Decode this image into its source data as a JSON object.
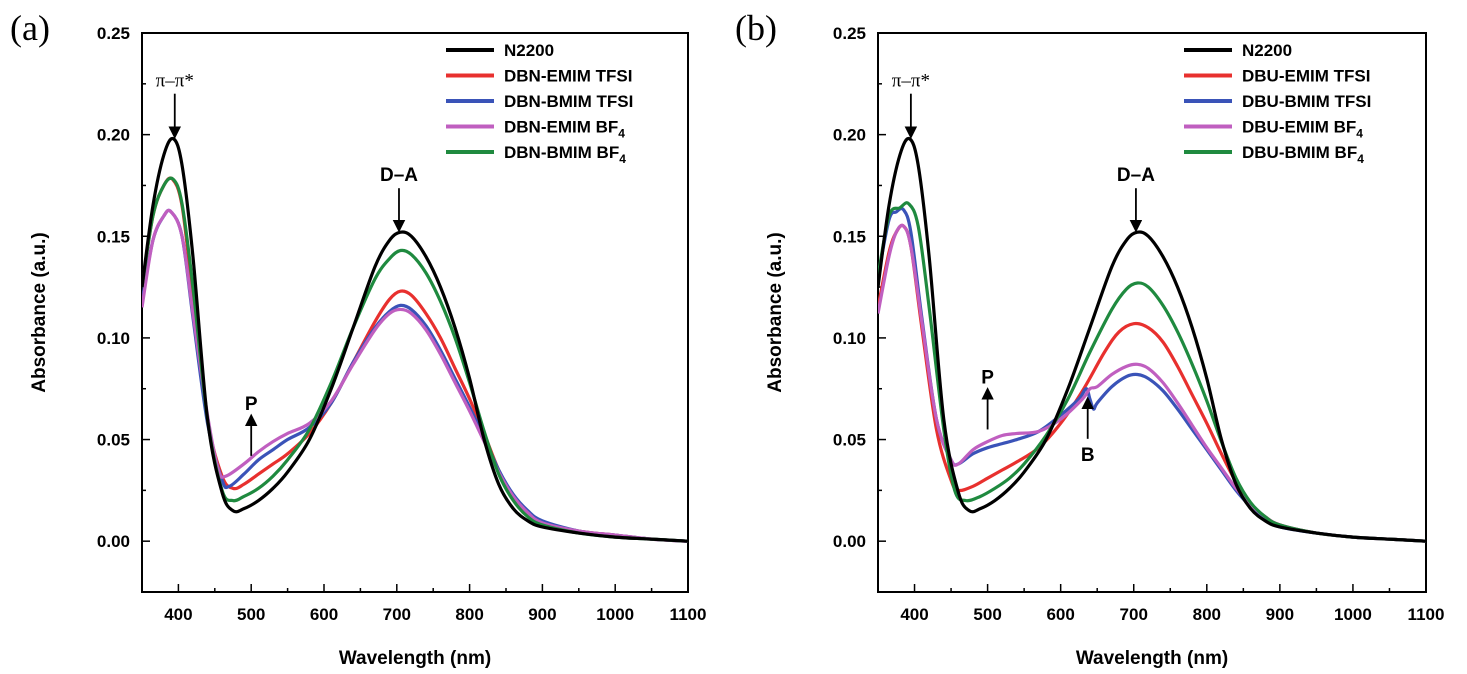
{
  "figure": {
    "panels": [
      "(a)",
      "(b)"
    ]
  },
  "chart_data": [
    {
      "type": "line",
      "panel_label": "(a)",
      "xlabel": "Wavelength (nm)",
      "ylabel": "Absorbance (a.u.)",
      "xlim": [
        350,
        1100
      ],
      "ylim": [
        -0.025,
        0.25
      ],
      "xticks": [
        400,
        500,
        600,
        700,
        800,
        900,
        1000,
        1100
      ],
      "yticks": [
        0.0,
        0.05,
        0.1,
        0.15,
        0.2,
        0.25
      ],
      "ytick_labels": [
        "0.00",
        "0.05",
        "0.10",
        "0.15",
        "0.20",
        "0.25"
      ],
      "grid": false,
      "legend_position": "top-right",
      "series": [
        {
          "name": "N2200",
          "name_main": "N2200",
          "name_sub": "",
          "color": "#000000",
          "x": [
            350,
            365,
            380,
            393,
            405,
            420,
            440,
            460,
            475,
            490,
            510,
            530,
            550,
            580,
            610,
            640,
            670,
            690,
            705,
            720,
            740,
            760,
            780,
            800,
            820,
            840,
            860,
            880,
            900,
            950,
            1000,
            1050,
            1100
          ],
          "y": [
            0.125,
            0.165,
            0.19,
            0.198,
            0.185,
            0.14,
            0.06,
            0.024,
            0.015,
            0.016,
            0.02,
            0.026,
            0.034,
            0.05,
            0.075,
            0.105,
            0.135,
            0.148,
            0.152,
            0.15,
            0.14,
            0.125,
            0.105,
            0.08,
            0.05,
            0.028,
            0.016,
            0.01,
            0.007,
            0.004,
            0.002,
            0.001,
            0.0
          ]
        },
        {
          "name": "DBN-EMIM TFSI",
          "name_main": "DBN-EMIM TFSI",
          "name_sub": "",
          "color": "#e8302e",
          "x": [
            350,
            365,
            380,
            392,
            405,
            420,
            440,
            460,
            475,
            490,
            510,
            530,
            550,
            580,
            610,
            640,
            670,
            690,
            705,
            720,
            740,
            760,
            780,
            800,
            820,
            840,
            860,
            880,
            900,
            950,
            1000,
            1050,
            1100
          ],
          "y": [
            0.125,
            0.16,
            0.175,
            0.178,
            0.165,
            0.12,
            0.06,
            0.032,
            0.026,
            0.028,
            0.033,
            0.038,
            0.043,
            0.053,
            0.068,
            0.088,
            0.108,
            0.119,
            0.123,
            0.121,
            0.112,
            0.1,
            0.085,
            0.07,
            0.053,
            0.035,
            0.022,
            0.014,
            0.009,
            0.005,
            0.003,
            0.001,
            0.0
          ]
        },
        {
          "name": "DBN-BMIM TFSI",
          "name_main": "DBN-BMIM TFSI",
          "name_sub": "",
          "color": "#3a53b8",
          "x": [
            350,
            365,
            380,
            390,
            405,
            420,
            440,
            460,
            470,
            490,
            510,
            530,
            550,
            580,
            610,
            640,
            670,
            690,
            705,
            720,
            740,
            760,
            780,
            800,
            820,
            840,
            860,
            880,
            900,
            950,
            1000,
            1050,
            1100
          ],
          "y": [
            0.118,
            0.148,
            0.16,
            0.162,
            0.15,
            0.11,
            0.058,
            0.03,
            0.027,
            0.033,
            0.04,
            0.045,
            0.05,
            0.056,
            0.068,
            0.088,
            0.105,
            0.113,
            0.116,
            0.114,
            0.106,
            0.094,
            0.08,
            0.066,
            0.051,
            0.035,
            0.023,
            0.015,
            0.01,
            0.005,
            0.003,
            0.001,
            0.0
          ]
        },
        {
          "name": "DBN-EMIM BF4",
          "name_main": "DBN-EMIM BF",
          "name_sub": "4",
          "color": "#c05fc0",
          "x": [
            350,
            365,
            380,
            390,
            405,
            420,
            440,
            455,
            465,
            490,
            510,
            530,
            550,
            580,
            610,
            640,
            670,
            690,
            705,
            720,
            740,
            760,
            780,
            800,
            820,
            840,
            860,
            880,
            900,
            950,
            1000,
            1050,
            1100
          ],
          "y": [
            0.115,
            0.148,
            0.16,
            0.162,
            0.15,
            0.112,
            0.062,
            0.035,
            0.032,
            0.038,
            0.044,
            0.049,
            0.053,
            0.058,
            0.069,
            0.087,
            0.104,
            0.112,
            0.114,
            0.112,
            0.104,
            0.092,
            0.078,
            0.064,
            0.049,
            0.034,
            0.022,
            0.014,
            0.009,
            0.005,
            0.003,
            0.001,
            0.0
          ]
        },
        {
          "name": "DBN-BMIM BF4",
          "name_main": "DBN-BMIM BF",
          "name_sub": "4",
          "color": "#1f8a3f",
          "x": [
            350,
            365,
            380,
            393,
            405,
            420,
            440,
            460,
            475,
            490,
            510,
            530,
            550,
            580,
            610,
            640,
            670,
            690,
            705,
            720,
            740,
            760,
            780,
            800,
            820,
            840,
            860,
            880,
            900,
            950,
            1000,
            1050,
            1100
          ],
          "y": [
            0.125,
            0.16,
            0.175,
            0.178,
            0.166,
            0.125,
            0.06,
            0.025,
            0.02,
            0.022,
            0.026,
            0.032,
            0.04,
            0.055,
            0.078,
            0.105,
            0.129,
            0.139,
            0.143,
            0.141,
            0.132,
            0.118,
            0.1,
            0.078,
            0.054,
            0.033,
            0.02,
            0.012,
            0.008,
            0.004,
            0.002,
            0.001,
            0.0
          ]
        }
      ],
      "annotations": [
        {
          "text": "π–π*",
          "x": 395,
          "y": 0.198,
          "style": "pi"
        },
        {
          "text": "D–A",
          "x": 703,
          "y": 0.152,
          "style": "down"
        },
        {
          "text": "P",
          "x": 500,
          "y": 0.04,
          "style": "up"
        }
      ]
    },
    {
      "type": "line",
      "panel_label": "(b)",
      "xlabel": "Wavelength (nm)",
      "ylabel": "Absorbance (a.u.)",
      "xlim": [
        350,
        1100
      ],
      "ylim": [
        -0.025,
        0.25
      ],
      "xticks": [
        400,
        500,
        600,
        700,
        800,
        900,
        1000,
        1100
      ],
      "yticks": [
        0.0,
        0.05,
        0.1,
        0.15,
        0.2,
        0.25
      ],
      "ytick_labels": [
        "0.00",
        "0.05",
        "0.10",
        "0.15",
        "0.20",
        "0.25"
      ],
      "grid": false,
      "legend_position": "top-right",
      "series": [
        {
          "name": "N2200",
          "name_main": "N2200",
          "name_sub": "",
          "color": "#000000",
          "x": [
            350,
            365,
            380,
            393,
            405,
            420,
            440,
            460,
            475,
            490,
            510,
            530,
            550,
            580,
            610,
            640,
            670,
            690,
            705,
            720,
            740,
            760,
            780,
            800,
            820,
            840,
            860,
            880,
            900,
            950,
            1000,
            1050,
            1100
          ],
          "y": [
            0.125,
            0.165,
            0.19,
            0.198,
            0.185,
            0.14,
            0.06,
            0.024,
            0.015,
            0.016,
            0.02,
            0.026,
            0.034,
            0.05,
            0.075,
            0.105,
            0.135,
            0.148,
            0.152,
            0.15,
            0.14,
            0.125,
            0.105,
            0.08,
            0.05,
            0.028,
            0.016,
            0.01,
            0.007,
            0.004,
            0.002,
            0.001,
            0.0
          ]
        },
        {
          "name": "DBU-EMIM TFSI",
          "name_main": "DBU-EMIM TFSI",
          "name_sub": "",
          "color": "#e8302e",
          "x": [
            350,
            365,
            375,
            385,
            395,
            410,
            430,
            450,
            460,
            480,
            500,
            520,
            540,
            570,
            600,
            630,
            660,
            680,
            700,
            720,
            740,
            760,
            780,
            800,
            820,
            840,
            860,
            880,
            900,
            950,
            1000,
            1050,
            1100
          ],
          "y": [
            0.115,
            0.142,
            0.152,
            0.155,
            0.145,
            0.105,
            0.055,
            0.03,
            0.025,
            0.027,
            0.031,
            0.035,
            0.039,
            0.046,
            0.058,
            0.074,
            0.093,
            0.103,
            0.107,
            0.105,
            0.098,
            0.086,
            0.072,
            0.058,
            0.043,
            0.029,
            0.018,
            0.012,
            0.008,
            0.004,
            0.002,
            0.001,
            0.0
          ]
        },
        {
          "name": "DBU-BMIM TFSI",
          "name_main": "DBU-BMIM TFSI",
          "name_sub": "",
          "color": "#3a53b8",
          "x": [
            350,
            365,
            375,
            385,
            395,
            410,
            430,
            450,
            460,
            480,
            500,
            520,
            540,
            570,
            600,
            625,
            635,
            640,
            645,
            650,
            670,
            690,
            705,
            720,
            740,
            760,
            780,
            800,
            820,
            840,
            860,
            880,
            900,
            950,
            1000,
            1050,
            1100
          ],
          "y": [
            0.13,
            0.158,
            0.162,
            0.163,
            0.152,
            0.11,
            0.06,
            0.04,
            0.038,
            0.043,
            0.046,
            0.048,
            0.05,
            0.054,
            0.062,
            0.07,
            0.075,
            0.07,
            0.065,
            0.068,
            0.076,
            0.081,
            0.082,
            0.08,
            0.074,
            0.065,
            0.055,
            0.045,
            0.035,
            0.025,
            0.017,
            0.011,
            0.007,
            0.004,
            0.002,
            0.001,
            0.0
          ]
        },
        {
          "name": "DBU-EMIM BF4",
          "name_main": "DBU-EMIM BF",
          "name_sub": "4",
          "color": "#c05fc0",
          "x": [
            350,
            365,
            375,
            385,
            395,
            410,
            430,
            450,
            460,
            480,
            500,
            520,
            540,
            570,
            600,
            630,
            640,
            650,
            670,
            690,
            705,
            720,
            740,
            760,
            780,
            800,
            820,
            840,
            860,
            880,
            900,
            950,
            1000,
            1050,
            1100
          ],
          "y": [
            0.112,
            0.14,
            0.152,
            0.155,
            0.145,
            0.108,
            0.06,
            0.04,
            0.038,
            0.045,
            0.049,
            0.052,
            0.053,
            0.054,
            0.06,
            0.07,
            0.075,
            0.076,
            0.082,
            0.086,
            0.087,
            0.085,
            0.078,
            0.068,
            0.057,
            0.046,
            0.036,
            0.026,
            0.018,
            0.012,
            0.008,
            0.004,
            0.002,
            0.001,
            0.0
          ]
        },
        {
          "name": "DBU-BMIM BF4",
          "name_main": "DBU-BMIM BF",
          "name_sub": "4",
          "color": "#1f8a3f",
          "x": [
            350,
            365,
            380,
            392,
            405,
            420,
            440,
            455,
            470,
            490,
            510,
            530,
            550,
            580,
            610,
            640,
            670,
            690,
            705,
            720,
            740,
            760,
            780,
            800,
            820,
            840,
            860,
            880,
            900,
            950,
            1000,
            1050,
            1100
          ],
          "y": [
            0.13,
            0.16,
            0.164,
            0.166,
            0.155,
            0.115,
            0.055,
            0.025,
            0.02,
            0.022,
            0.026,
            0.031,
            0.038,
            0.052,
            0.07,
            0.093,
            0.114,
            0.124,
            0.127,
            0.125,
            0.116,
            0.103,
            0.087,
            0.069,
            0.049,
            0.031,
            0.019,
            0.012,
            0.008,
            0.004,
            0.002,
            0.001,
            0.0
          ]
        }
      ],
      "annotations": [
        {
          "text": "π–π*",
          "x": 395,
          "y": 0.198,
          "style": "pi"
        },
        {
          "text": "D–A",
          "x": 703,
          "y": 0.152,
          "style": "down"
        },
        {
          "text": "P",
          "x": 500,
          "y": 0.053,
          "style": "up"
        },
        {
          "text": "B",
          "x": 637,
          "y": 0.072,
          "style": "below"
        }
      ]
    }
  ]
}
